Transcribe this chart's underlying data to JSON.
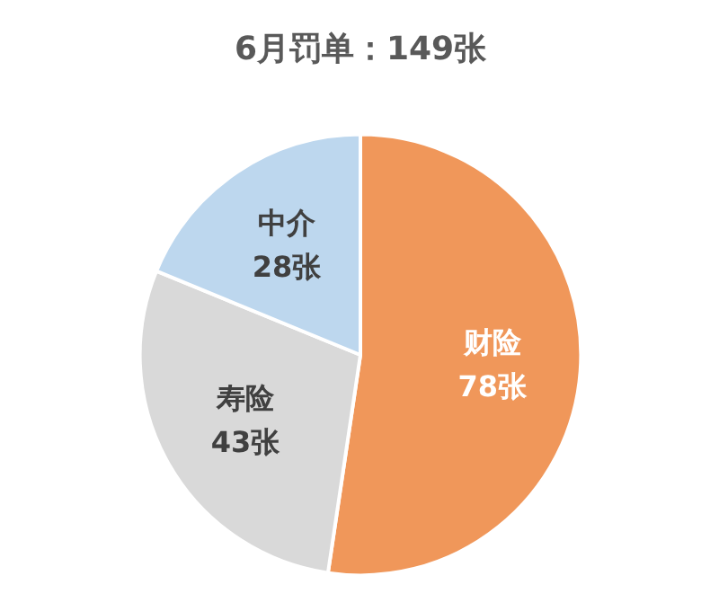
{
  "chart_data": {
    "type": "pie",
    "title": "6月罚单：149张",
    "categories": [
      "财险",
      "寿险",
      "中介"
    ],
    "values": [
      78,
      43,
      28
    ],
    "colors": [
      "#f0975a",
      "#d9d9d9",
      "#bdd7ee"
    ],
    "value_labels": [
      "78张",
      "43张",
      "28张"
    ]
  }
}
